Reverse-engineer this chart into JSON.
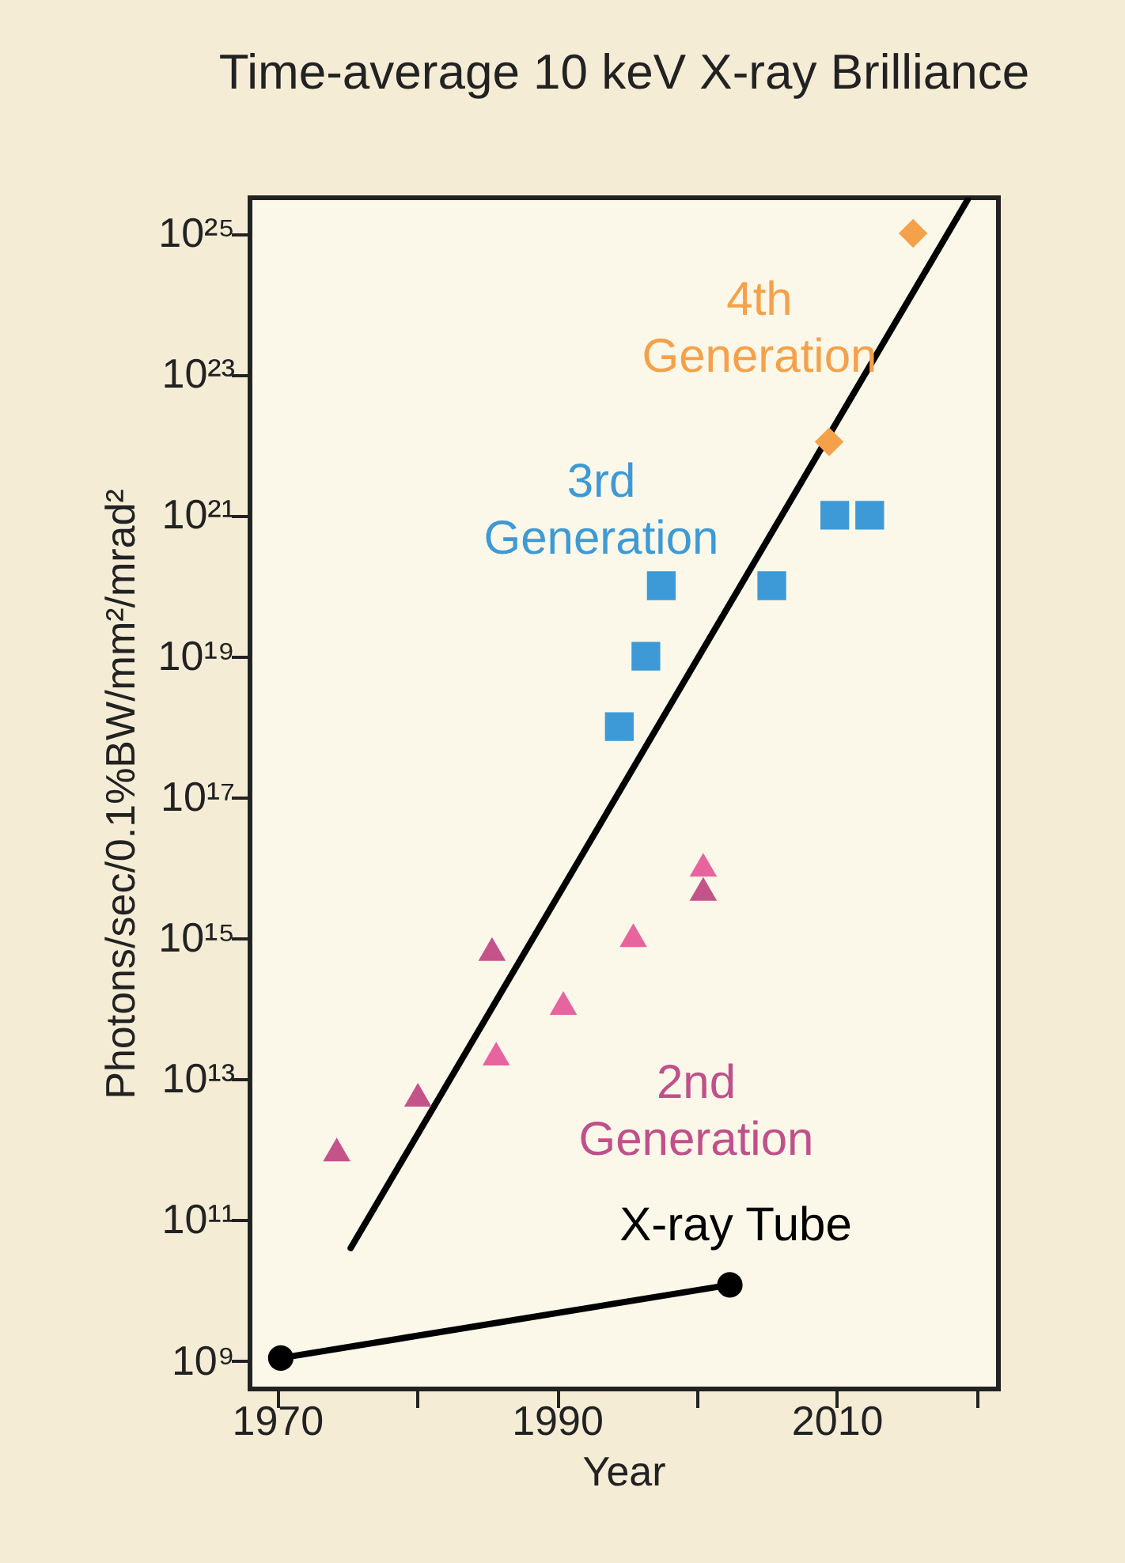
{
  "chart_data": {
    "type": "scatter",
    "title": "Time-average 10 keV X-ray Brilliance",
    "xlabel": "Year",
    "ylabel": "Photons/sec/0.1%BW/mm²/mrad²",
    "log": true,
    "grid": false,
    "xlim": [
      1968,
      2021.5
    ],
    "xticks": [
      1970,
      {
        "value": 1980,
        "label": null
      },
      1990,
      {
        "value": 2000,
        "label": null
      },
      2010,
      {
        "value": 2020,
        "label": null
      }
    ],
    "ylim": [
      400000000.0,
      3.2e+25
    ],
    "yticks": [
      {
        "value": 1000000000.0,
        "label": "10⁹"
      },
      {
        "value": 100000000000.0,
        "label": "10¹¹"
      },
      {
        "value": 10000000000000.0,
        "label": "10¹³"
      },
      {
        "value": 1000000000000000.0,
        "label": "10¹⁵"
      },
      {
        "value": 1e+17,
        "label": "10¹⁷"
      },
      {
        "value": 1e+19,
        "label": "10¹⁹"
      },
      {
        "value": 1e+21,
        "label": "10²¹"
      },
      {
        "value": 1e+23,
        "label": "10²³"
      },
      {
        "value": 1e+25,
        "label": "10²⁵"
      }
    ],
    "series": [
      {
        "type": "line",
        "marker": "circle",
        "color": "#000000",
        "x": [
          1970.2,
          2002.3
        ],
        "values": [
          1100000000.0,
          12000000000.0
        ]
      },
      {
        "type": "line",
        "marker": "none",
        "color": "#000000",
        "x": [
          1975.2,
          2019.3
        ],
        "values": [
          40000000000.0,
          3e+25
        ]
      },
      {
        "marker": "triangle",
        "color": "#c4538a",
        "x": [
          1974.2,
          1980,
          1985.3,
          2000.4
        ],
        "values": [
          1000000000000.0,
          6000000000000.0,
          700000000000000.0,
          5000000000000000.0
        ]
      },
      {
        "marker": "triangle",
        "color": "#e8649e",
        "x": [
          1985.6,
          1990.4,
          1995.4,
          2000.4
        ],
        "values": [
          23000000000000.0,
          120000000000000.0,
          1100000000000000.0,
          1.1e+16
        ]
      },
      {
        "marker": "square",
        "color": "#3d9ad6",
        "x": [
          1994.4,
          1996.3,
          1997.4,
          2005.3,
          2009.8,
          2012.3
        ],
        "values": [
          1e+18,
          1e+19,
          1e+20,
          1e+20,
          1e+21,
          1e+21
        ]
      },
      {
        "marker": "diamond",
        "color": "#f5a14a",
        "x": [
          2009.4,
          2015.4
        ],
        "values": [
          1.1e+22,
          1e+25
        ]
      }
    ],
    "annotations": [
      "4th\nGeneration",
      "3rd\nGeneration",
      "2nd\nGeneration",
      "X-ray Tube"
    ]
  }
}
